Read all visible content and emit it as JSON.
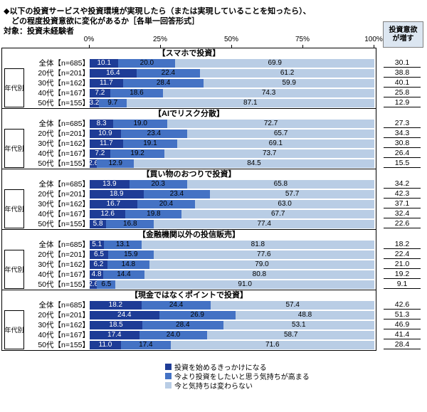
{
  "title": {
    "line1": "◆以下の投資サービスや投資環境が実現したら（または実現していることを知ったら）、",
    "line2": "　どの程度投資意欲に変化があるか［各単一回答形式］",
    "line3": "対象：投資未経験者"
  },
  "right_column": {
    "header_line1": "投資意欲",
    "header_line2": "が増す"
  },
  "axis": {
    "ticks": [
      "0%",
      "25%",
      "50%",
      "75%",
      "100%"
    ]
  },
  "age_axis_label": "年代別",
  "legend": {
    "items": [
      {
        "label": "投資を始めるきっかけになる",
        "color": "#1e3c96"
      },
      {
        "label": "今より投資をしたいと思う気持ちが高まる",
        "color": "#4472c4"
      },
      {
        "label": "今と気持ちは変わらない",
        "color": "#b9cde5"
      }
    ]
  },
  "chart_data": {
    "type": "bar",
    "orientation": "horizontal",
    "stacked": true,
    "x_range": [
      0,
      100
    ],
    "x_ticks": [
      0,
      25,
      50,
      75,
      100
    ],
    "series_names": [
      "投資を始めるきっかけになる",
      "今より投資をしたいと思う気持ちが高まる",
      "今と気持ちは変わらない"
    ],
    "colors": [
      "#1e3c96",
      "#4472c4",
      "#b9cde5"
    ],
    "total_column_label": "投資意欲が増す",
    "sections": [
      {
        "title": "【スマホで投資】",
        "rows": [
          {
            "label": "全体【n=685】",
            "values": [
              10.1,
              20.0,
              69.9
            ],
            "total": 30.1
          },
          {
            "label": "20代【n=201】",
            "values": [
              16.4,
              22.4,
              61.2
            ],
            "total": 38.8
          },
          {
            "label": "30代【n=162】",
            "values": [
              11.7,
              28.4,
              59.9
            ],
            "total": 40.1
          },
          {
            "label": "40代【n=167】",
            "values": [
              7.2,
              18.6,
              74.3
            ],
            "total": 25.8
          },
          {
            "label": "50代【n=155】",
            "values": [
              3.2,
              9.7,
              87.1
            ],
            "total": 12.9
          }
        ]
      },
      {
        "title": "【AIでリスク分散】",
        "rows": [
          {
            "label": "全体【n=685】",
            "values": [
              8.3,
              19.0,
              72.7
            ],
            "total": 27.3
          },
          {
            "label": "20代【n=201】",
            "values": [
              10.9,
              23.4,
              65.7
            ],
            "total": 34.3
          },
          {
            "label": "30代【n=162】",
            "values": [
              11.7,
              19.1,
              69.1
            ],
            "total": 30.8
          },
          {
            "label": "40代【n=167】",
            "values": [
              7.2,
              19.2,
              73.7
            ],
            "total": 26.4
          },
          {
            "label": "50代【n=155】",
            "values": [
              2.6,
              12.9,
              84.5
            ],
            "total": 15.5
          }
        ]
      },
      {
        "title": "【買い物のおつりで投資】",
        "rows": [
          {
            "label": "全体【n=685】",
            "values": [
              13.9,
              20.3,
              65.8
            ],
            "total": 34.2
          },
          {
            "label": "20代【n=201】",
            "values": [
              18.9,
              23.4,
              57.7
            ],
            "total": 42.3
          },
          {
            "label": "30代【n=162】",
            "values": [
              16.7,
              20.4,
              63.0
            ],
            "total": 37.1
          },
          {
            "label": "40代【n=167】",
            "values": [
              12.6,
              19.8,
              67.7
            ],
            "total": 32.4
          },
          {
            "label": "50代【n=155】",
            "values": [
              5.8,
              16.8,
              77.4
            ],
            "total": 22.6
          }
        ]
      },
      {
        "title": "【金融機関以外の投信販売】",
        "rows": [
          {
            "label": "全体【n=685】",
            "values": [
              5.1,
              13.1,
              81.8
            ],
            "total": 18.2
          },
          {
            "label": "20代【n=201】",
            "values": [
              6.5,
              15.9,
              77.6
            ],
            "total": 22.4
          },
          {
            "label": "30代【n=162】",
            "values": [
              6.2,
              14.8,
              79.0
            ],
            "total": 21.0
          },
          {
            "label": "40代【n=167】",
            "values": [
              4.8,
              14.4,
              80.8
            ],
            "total": 19.2
          },
          {
            "label": "50代【n=155】",
            "values": [
              2.6,
              6.5,
              91.0
            ],
            "total": 9.1
          }
        ]
      },
      {
        "title": "【現金ではなくポイントで投資】",
        "rows": [
          {
            "label": "全体【n=685】",
            "values": [
              18.2,
              24.4,
              57.4
            ],
            "total": 42.6
          },
          {
            "label": "20代【n=201】",
            "values": [
              24.4,
              26.9,
              48.8
            ],
            "total": 51.3
          },
          {
            "label": "30代【n=162】",
            "values": [
              18.5,
              28.4,
              53.1
            ],
            "total": 46.9
          },
          {
            "label": "40代【n=167】",
            "values": [
              17.4,
              24.0,
              58.7
            ],
            "total": 41.4
          },
          {
            "label": "50代【n=155】",
            "values": [
              11.0,
              17.4,
              71.6
            ],
            "total": 28.4
          }
        ]
      }
    ]
  }
}
